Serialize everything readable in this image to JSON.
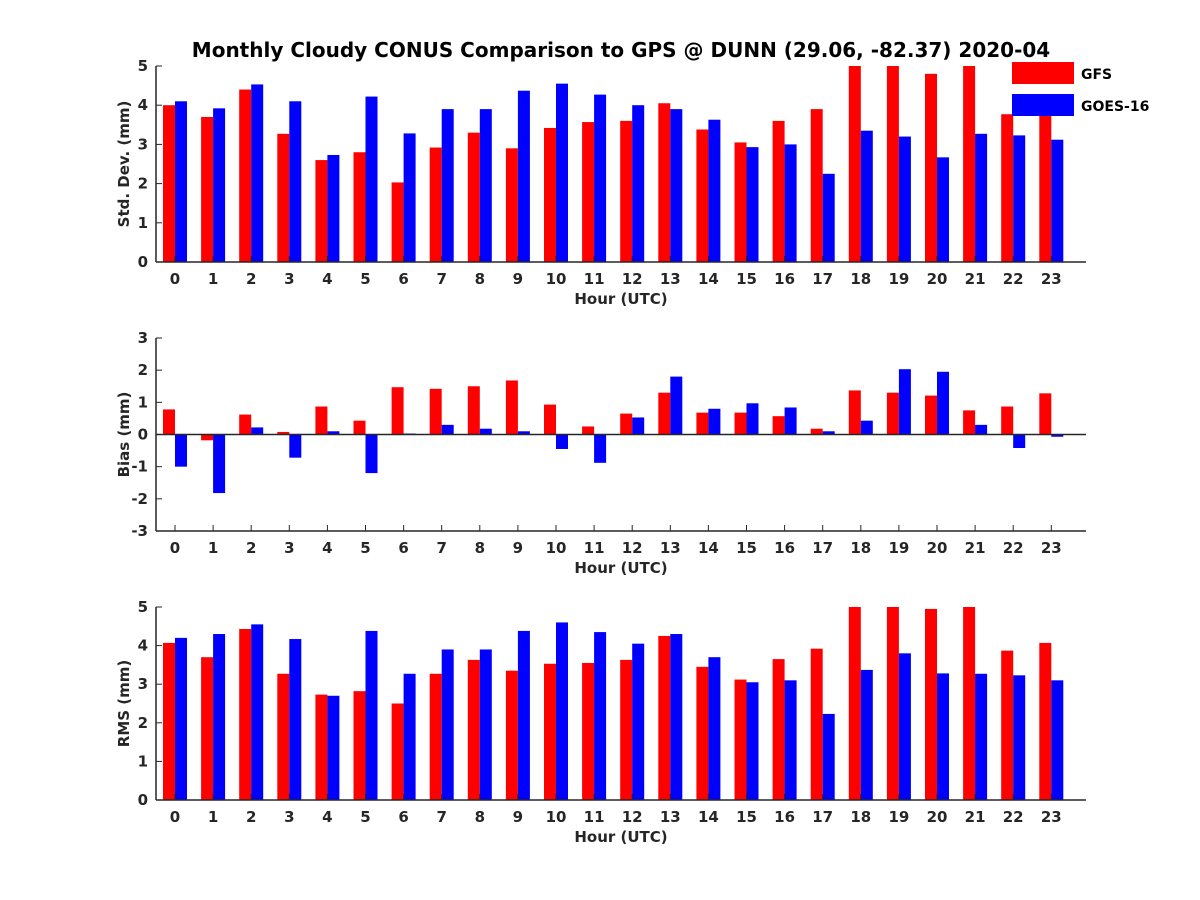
{
  "figure": {
    "title": "Monthly Cloudy CONUS Comparison to GPS @ DUNN (29.06, -82.37) 2020-04"
  },
  "legend": {
    "placement": "top-right",
    "entries": [
      {
        "label": "GFS",
        "color": "#ff0000"
      },
      {
        "label": "GOES-16",
        "color": "#0000ff"
      }
    ]
  },
  "chart_data": [
    {
      "type": "bar",
      "xlabel": "Hour (UTC)",
      "ylabel": "Std. Dev. (mm)",
      "ylim": [
        0,
        5
      ],
      "yticks": [
        0,
        1,
        2,
        3,
        4,
        5
      ],
      "categories": [
        "0",
        "1",
        "2",
        "3",
        "4",
        "5",
        "6",
        "7",
        "8",
        "9",
        "10",
        "11",
        "12",
        "13",
        "14",
        "15",
        "16",
        "17",
        "18",
        "19",
        "20",
        "21",
        "22",
        "23"
      ],
      "series": [
        {
          "name": "GFS",
          "color": "#ff0000",
          "values": [
            4.0,
            3.7,
            4.4,
            3.27,
            2.6,
            2.8,
            2.03,
            2.92,
            3.3,
            2.9,
            3.42,
            3.57,
            3.6,
            4.05,
            3.38,
            3.05,
            3.6,
            3.9,
            5.0,
            5.0,
            4.8,
            5.0,
            3.77,
            4.1
          ]
        },
        {
          "name": "GOES-16",
          "color": "#0000ff",
          "values": [
            4.1,
            3.92,
            4.53,
            4.1,
            2.73,
            4.22,
            3.28,
            3.9,
            3.9,
            4.37,
            4.55,
            4.27,
            4.0,
            3.9,
            3.63,
            2.93,
            3.0,
            2.25,
            3.35,
            3.2,
            2.67,
            3.27,
            3.23,
            3.12
          ]
        }
      ]
    },
    {
      "type": "bar",
      "xlabel": "Hour (UTC)",
      "ylabel": "Bias (mm)",
      "ylim": [
        -3,
        3
      ],
      "yticks": [
        -3,
        -2,
        -1,
        0,
        1,
        2,
        3
      ],
      "categories": [
        "0",
        "1",
        "2",
        "3",
        "4",
        "5",
        "6",
        "7",
        "8",
        "9",
        "10",
        "11",
        "12",
        "13",
        "14",
        "15",
        "16",
        "17",
        "18",
        "19",
        "20",
        "21",
        "22",
        "23"
      ],
      "series": [
        {
          "name": "GFS",
          "color": "#ff0000",
          "values": [
            0.78,
            -0.18,
            0.62,
            0.08,
            0.87,
            0.43,
            1.47,
            1.42,
            1.5,
            1.68,
            0.93,
            0.25,
            0.65,
            1.3,
            0.68,
            0.68,
            0.57,
            0.18,
            1.37,
            1.3,
            1.21,
            0.75,
            0.87,
            1.28
          ]
        },
        {
          "name": "GOES-16",
          "color": "#0000ff",
          "values": [
            -1.0,
            -1.82,
            0.22,
            -0.72,
            0.1,
            -1.2,
            0.03,
            0.3,
            0.18,
            0.1,
            -0.45,
            -0.88,
            0.53,
            1.8,
            0.8,
            0.97,
            0.84,
            0.1,
            0.43,
            2.03,
            1.95,
            0.3,
            -0.42,
            -0.07
          ]
        }
      ]
    },
    {
      "type": "bar",
      "xlabel": "Hour (UTC)",
      "ylabel": "RMS (mm)",
      "ylim": [
        0,
        5
      ],
      "yticks": [
        0,
        1,
        2,
        3,
        4,
        5
      ],
      "categories": [
        "0",
        "1",
        "2",
        "3",
        "4",
        "5",
        "6",
        "7",
        "8",
        "9",
        "10",
        "11",
        "12",
        "13",
        "14",
        "15",
        "16",
        "17",
        "18",
        "19",
        "20",
        "21",
        "22",
        "23"
      ],
      "series": [
        {
          "name": "GFS",
          "color": "#ff0000",
          "values": [
            4.07,
            3.7,
            4.43,
            3.27,
            2.73,
            2.82,
            2.5,
            3.27,
            3.63,
            3.35,
            3.53,
            3.55,
            3.63,
            4.25,
            3.45,
            3.12,
            3.65,
            3.92,
            5.0,
            5.0,
            4.95,
            5.0,
            3.87,
            4.07
          ]
        },
        {
          "name": "GOES-16",
          "color": "#0000ff",
          "values": [
            4.2,
            4.3,
            4.55,
            4.17,
            2.7,
            4.38,
            3.27,
            3.9,
            3.9,
            4.38,
            4.6,
            4.35,
            4.05,
            4.3,
            3.7,
            3.05,
            3.1,
            2.23,
            3.37,
            3.8,
            3.28,
            3.27,
            3.23,
            3.1
          ]
        }
      ]
    }
  ]
}
